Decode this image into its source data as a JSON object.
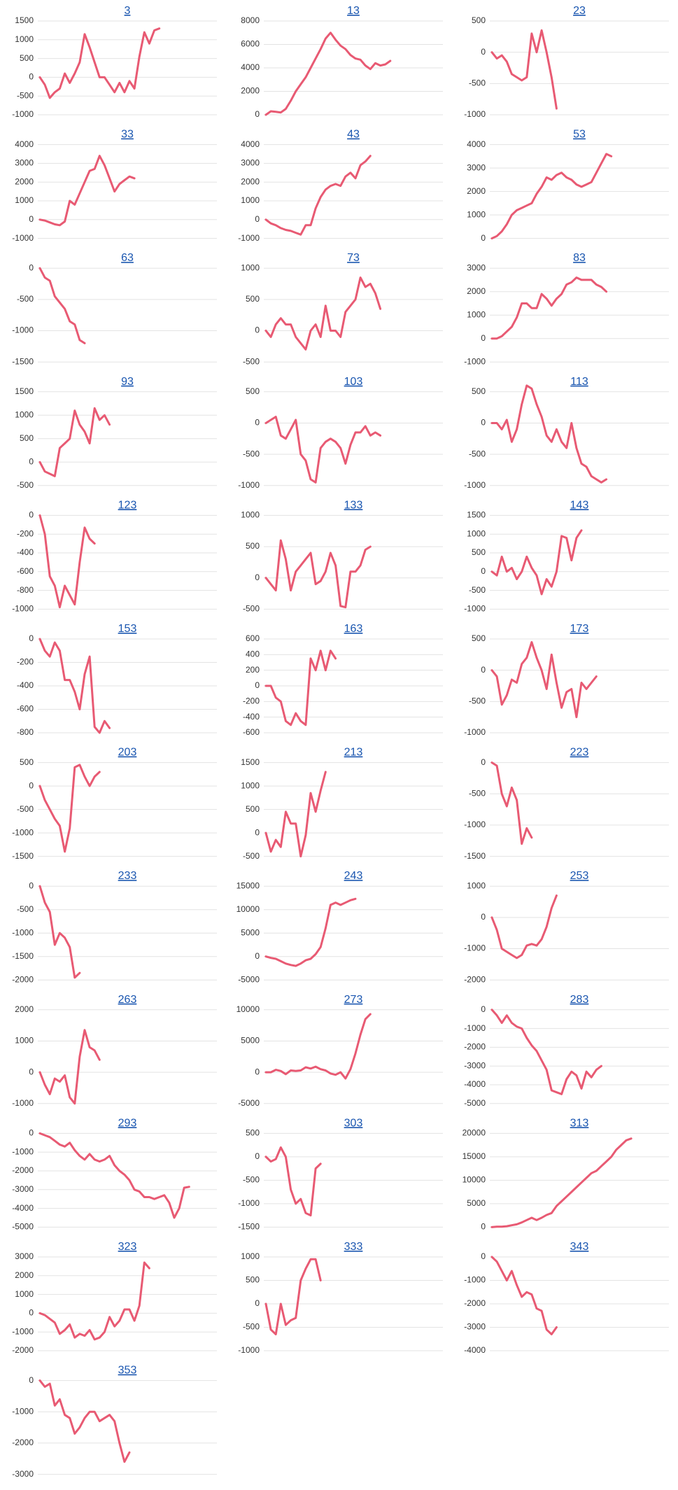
{
  "chart_data": [
    {
      "type": "line",
      "title": "3",
      "color": "#e85a73",
      "grid": true,
      "ylim": [
        -1000,
        1500
      ],
      "yticks": [
        -1000,
        -500,
        0,
        500,
        1000,
        1500
      ],
      "values": [
        0,
        -200,
        -550,
        -400,
        -300,
        100,
        -150,
        100,
        400,
        1150,
        800,
        400,
        0,
        0,
        -200,
        -400,
        -150,
        -400,
        -100,
        -300,
        550,
        1200,
        900,
        1250,
        1300
      ]
    },
    {
      "type": "line",
      "title": "13",
      "color": "#e85a73",
      "grid": true,
      "ylim": [
        0,
        8000
      ],
      "yticks": [
        0,
        2000,
        4000,
        6000,
        8000
      ],
      "values": [
        0,
        300,
        250,
        200,
        500,
        1200,
        2000,
        2600,
        3200,
        4000,
        4800,
        5600,
        6500,
        7000,
        6400,
        5900,
        5600,
        5100,
        4800,
        4700,
        4200,
        3900,
        4400,
        4200,
        4300,
        4600
      ]
    },
    {
      "type": "line",
      "title": "23",
      "color": "#e85a73",
      "grid": true,
      "ylim": [
        -1000,
        500
      ],
      "yticks": [
        -1000,
        -500,
        0,
        500
      ],
      "values": [
        0,
        -100,
        -50,
        -150,
        -350,
        -400,
        -450,
        -400,
        300,
        0,
        350,
        0,
        -400,
        -900
      ]
    },
    {
      "type": "line",
      "title": "33",
      "color": "#e85a73",
      "grid": true,
      "ylim": [
        -1000,
        4000
      ],
      "yticks": [
        -1000,
        0,
        1000,
        2000,
        3000,
        4000
      ],
      "values": [
        0,
        -50,
        -150,
        -250,
        -300,
        -100,
        1000,
        800,
        1400,
        2000,
        2600,
        2700,
        3400,
        2900,
        2200,
        1500,
        1900,
        2100,
        2300,
        2200
      ]
    },
    {
      "type": "line",
      "title": "43",
      "color": "#e85a73",
      "grid": true,
      "ylim": [
        -1000,
        4000
      ],
      "yticks": [
        -1000,
        0,
        1000,
        2000,
        3000,
        4000
      ],
      "values": [
        0,
        -200,
        -300,
        -450,
        -550,
        -600,
        -700,
        -800,
        -300,
        -300,
        600,
        1200,
        1600,
        1800,
        1900,
        1800,
        2300,
        2500,
        2200,
        2900,
        3100,
        3400
      ]
    },
    {
      "type": "line",
      "title": "53",
      "color": "#e85a73",
      "grid": true,
      "ylim": [
        0,
        4000
      ],
      "yticks": [
        0,
        1000,
        2000,
        3000,
        4000
      ],
      "values": [
        0,
        100,
        300,
        600,
        1000,
        1200,
        1300,
        1400,
        1500,
        1900,
        2200,
        2600,
        2500,
        2700,
        2800,
        2600,
        2500,
        2300,
        2200,
        2300,
        2400,
        2800,
        3200,
        3600,
        3500
      ]
    },
    {
      "type": "line",
      "title": "63",
      "color": "#e85a73",
      "grid": true,
      "ylim": [
        -1500,
        0
      ],
      "yticks": [
        -1500,
        -1000,
        -500,
        0
      ],
      "values": [
        0,
        -150,
        -200,
        -450,
        -550,
        -650,
        -850,
        -900,
        -1150,
        -1200
      ]
    },
    {
      "type": "line",
      "title": "73",
      "color": "#e85a73",
      "grid": true,
      "ylim": [
        -500,
        1000
      ],
      "yticks": [
        -500,
        0,
        500,
        1000
      ],
      "values": [
        0,
        -100,
        100,
        200,
        100,
        100,
        -100,
        -200,
        -300,
        0,
        100,
        -100,
        400,
        0,
        0,
        -100,
        300,
        400,
        500,
        850,
        700,
        750,
        600,
        350
      ]
    },
    {
      "type": "line",
      "title": "83",
      "color": "#e85a73",
      "grid": true,
      "ylim": [
        -1000,
        3000
      ],
      "yticks": [
        -1000,
        0,
        1000,
        2000,
        3000
      ],
      "values": [
        0,
        0,
        100,
        300,
        500,
        900,
        1500,
        1500,
        1300,
        1300,
        1900,
        1700,
        1400,
        1700,
        1900,
        2300,
        2400,
        2600,
        2500,
        2500,
        2500,
        2300,
        2200,
        2000
      ]
    },
    {
      "type": "line",
      "title": "93",
      "color": "#e85a73",
      "grid": true,
      "ylim": [
        -500,
        1500
      ],
      "yticks": [
        -500,
        0,
        500,
        1000,
        1500
      ],
      "values": [
        0,
        -200,
        -250,
        -300,
        300,
        400,
        500,
        1100,
        800,
        650,
        400,
        1150,
        900,
        1000,
        800
      ]
    },
    {
      "type": "line",
      "title": "103",
      "color": "#e85a73",
      "grid": true,
      "ylim": [
        -1000,
        500
      ],
      "yticks": [
        -1000,
        -500,
        0,
        500
      ],
      "values": [
        0,
        50,
        100,
        -200,
        -250,
        -100,
        50,
        -500,
        -600,
        -900,
        -950,
        -400,
        -300,
        -250,
        -300,
        -400,
        -650,
        -350,
        -150,
        -150,
        -50,
        -200,
        -150,
        -200
      ]
    },
    {
      "type": "line",
      "title": "113",
      "color": "#e85a73",
      "grid": true,
      "ylim": [
        -1000,
        500
      ],
      "yticks": [
        -1000,
        -500,
        0,
        500
      ],
      "values": [
        0,
        0,
        -100,
        50,
        -300,
        -100,
        300,
        600,
        550,
        300,
        100,
        -200,
        -300,
        -100,
        -300,
        -400,
        0,
        -400,
        -650,
        -700,
        -850,
        -900,
        -950,
        -900
      ]
    },
    {
      "type": "line",
      "title": "123",
      "color": "#e85a73",
      "grid": true,
      "ylim": [
        -1000,
        0
      ],
      "yticks": [
        -1000,
        -800,
        -600,
        -400,
        -200,
        0
      ],
      "values": [
        0,
        -200,
        -650,
        -750,
        -980,
        -750,
        -850,
        -950,
        -500,
        -130,
        -250,
        -300
      ]
    },
    {
      "type": "line",
      "title": "133",
      "color": "#e85a73",
      "grid": true,
      "ylim": [
        -500,
        1000
      ],
      "yticks": [
        -500,
        0,
        500,
        1000
      ],
      "values": [
        0,
        -100,
        -200,
        600,
        300,
        -200,
        100,
        200,
        300,
        400,
        -100,
        -50,
        100,
        400,
        200,
        -450,
        -470,
        100,
        100,
        200,
        450,
        500
      ]
    },
    {
      "type": "line",
      "title": "143",
      "color": "#e85a73",
      "grid": true,
      "ylim": [
        -1000,
        1500
      ],
      "yticks": [
        -1000,
        -500,
        0,
        500,
        1000,
        1500
      ],
      "values": [
        0,
        -100,
        400,
        0,
        100,
        -200,
        0,
        400,
        100,
        -100,
        -600,
        -200,
        -400,
        0,
        950,
        900,
        300,
        900,
        1100
      ]
    },
    {
      "type": "line",
      "title": "153",
      "color": "#e85a73",
      "grid": true,
      "ylim": [
        -800,
        0
      ],
      "yticks": [
        -800,
        -600,
        -400,
        -200,
        0
      ],
      "values": [
        0,
        -100,
        -150,
        -30,
        -100,
        -350,
        -350,
        -450,
        -600,
        -300,
        -150,
        -750,
        -800,
        -700,
        -760
      ]
    },
    {
      "type": "line",
      "title": "163",
      "color": "#e85a73",
      "grid": true,
      "ylim": [
        -600,
        600
      ],
      "yticks": [
        -600,
        -400,
        -200,
        0,
        200,
        400,
        600
      ],
      "values": [
        0,
        0,
        -150,
        -200,
        -450,
        -500,
        -350,
        -450,
        -500,
        350,
        200,
        450,
        200,
        450,
        350
      ]
    },
    {
      "type": "line",
      "title": "173",
      "color": "#e85a73",
      "grid": true,
      "ylim": [
        -1000,
        500
      ],
      "yticks": [
        -1000,
        -500,
        0,
        500
      ],
      "values": [
        0,
        -100,
        -550,
        -400,
        -150,
        -200,
        100,
        200,
        450,
        200,
        0,
        -300,
        250,
        -200,
        -600,
        -350,
        -300,
        -750,
        -200,
        -300,
        -200,
        -100
      ]
    },
    {
      "type": "line",
      "title": "203",
      "color": "#e85a73",
      "grid": true,
      "ylim": [
        -1500,
        500
      ],
      "yticks": [
        -1500,
        -1000,
        -500,
        0,
        500
      ],
      "values": [
        0,
        -300,
        -500,
        -700,
        -850,
        -1400,
        -900,
        400,
        450,
        200,
        0,
        200,
        300
      ]
    },
    {
      "type": "line",
      "title": "213",
      "color": "#e85a73",
      "grid": true,
      "ylim": [
        -500,
        1500
      ],
      "yticks": [
        -500,
        0,
        500,
        1000,
        1500
      ],
      "values": [
        0,
        -400,
        -150,
        -300,
        450,
        200,
        200,
        -500,
        -50,
        850,
        450,
        900,
        1300
      ]
    },
    {
      "type": "line",
      "title": "223",
      "color": "#e85a73",
      "grid": true,
      "ylim": [
        -1500,
        0
      ],
      "yticks": [
        -1500,
        -1000,
        -500,
        0
      ],
      "values": [
        0,
        -50,
        -500,
        -700,
        -400,
        -600,
        -1300,
        -1050,
        -1200
      ]
    },
    {
      "type": "line",
      "title": "233",
      "color": "#e85a73",
      "grid": true,
      "ylim": [
        -2000,
        0
      ],
      "yticks": [
        -2000,
        -1500,
        -1000,
        -500,
        0
      ],
      "values": [
        0,
        -350,
        -550,
        -1250,
        -1000,
        -1100,
        -1300,
        -1950,
        -1850
      ]
    },
    {
      "type": "line",
      "title": "243",
      "color": "#e85a73",
      "grid": true,
      "ylim": [
        -5000,
        15000
      ],
      "yticks": [
        -5000,
        0,
        5000,
        10000,
        15000
      ],
      "values": [
        0,
        -300,
        -500,
        -1000,
        -1500,
        -1800,
        -2000,
        -1500,
        -800,
        -500,
        500,
        2000,
        6000,
        11000,
        11500,
        11000,
        11500,
        12000,
        12300
      ]
    },
    {
      "type": "line",
      "title": "253",
      "color": "#e85a73",
      "grid": true,
      "ylim": [
        -2000,
        1000
      ],
      "yticks": [
        -2000,
        -1000,
        0,
        1000
      ],
      "values": [
        0,
        -400,
        -1000,
        -1100,
        -1200,
        -1300,
        -1200,
        -900,
        -850,
        -900,
        -700,
        -300,
        300,
        700
      ]
    },
    {
      "type": "line",
      "title": "263",
      "color": "#e85a73",
      "grid": true,
      "ylim": [
        -1000,
        2000
      ],
      "yticks": [
        -1000,
        0,
        1000,
        2000
      ],
      "values": [
        0,
        -400,
        -700,
        -200,
        -300,
        -100,
        -800,
        -1000,
        500,
        1350,
        800,
        700,
        400
      ]
    },
    {
      "type": "line",
      "title": "273",
      "color": "#e85a73",
      "grid": true,
      "ylim": [
        -5000,
        10000
      ],
      "yticks": [
        -5000,
        0,
        5000,
        10000
      ],
      "values": [
        0,
        0,
        400,
        200,
        -300,
        300,
        200,
        300,
        800,
        600,
        900,
        500,
        300,
        -200,
        -400,
        0,
        -1000,
        500,
        3000,
        6000,
        8500,
        9300
      ]
    },
    {
      "type": "line",
      "title": "283",
      "color": "#e85a73",
      "grid": true,
      "ylim": [
        -5000,
        0
      ],
      "yticks": [
        -5000,
        -4000,
        -3000,
        -2000,
        -1000,
        0
      ],
      "values": [
        0,
        -300,
        -700,
        -300,
        -700,
        -900,
        -1000,
        -1500,
        -1900,
        -2200,
        -2700,
        -3200,
        -4300,
        -4400,
        -4500,
        -3700,
        -3300,
        -3500,
        -4200,
        -3300,
        -3600,
        -3200,
        -3000
      ]
    },
    {
      "type": "line",
      "title": "293",
      "color": "#e85a73",
      "grid": true,
      "ylim": [
        -5000,
        0
      ],
      "yticks": [
        -5000,
        -4000,
        -3000,
        -2000,
        -1000,
        0
      ],
      "values": [
        0,
        -100,
        -200,
        -400,
        -600,
        -700,
        -500,
        -900,
        -1200,
        -1400,
        -1100,
        -1400,
        -1500,
        -1400,
        -1200,
        -1700,
        -2000,
        -2200,
        -2500,
        -3000,
        -3100,
        -3400,
        -3400,
        -3500,
        -3400,
        -3300,
        -3700,
        -4500,
        -4000,
        -2900,
        -2850
      ]
    },
    {
      "type": "line",
      "title": "303",
      "color": "#e85a73",
      "grid": true,
      "ylim": [
        -1500,
        500
      ],
      "yticks": [
        -1500,
        -1000,
        -500,
        0,
        500
      ],
      "values": [
        0,
        -100,
        -50,
        200,
        0,
        -700,
        -1000,
        -900,
        -1200,
        -1250,
        -250,
        -150
      ]
    },
    {
      "type": "line",
      "title": "313",
      "color": "#e85a73",
      "grid": true,
      "ylim": [
        0,
        20000
      ],
      "yticks": [
        0,
        5000,
        10000,
        15000,
        20000
      ],
      "values": [
        0,
        100,
        100,
        200,
        400,
        600,
        1000,
        1500,
        2000,
        1500,
        2000,
        2600,
        3000,
        4500,
        5500,
        6500,
        7500,
        8500,
        9500,
        10500,
        11500,
        12000,
        13000,
        14000,
        15000,
        16500,
        17500,
        18500,
        18900
      ]
    },
    {
      "type": "line",
      "title": "323",
      "color": "#e85a73",
      "grid": true,
      "ylim": [
        -2000,
        3000
      ],
      "yticks": [
        -2000,
        -1000,
        0,
        1000,
        2000,
        3000
      ],
      "values": [
        0,
        -100,
        -300,
        -500,
        -1100,
        -900,
        -600,
        -1300,
        -1100,
        -1200,
        -900,
        -1400,
        -1300,
        -1000,
        -200,
        -700,
        -400,
        200,
        200,
        -400,
        400,
        2700,
        2400
      ]
    },
    {
      "type": "line",
      "title": "333",
      "color": "#e85a73",
      "grid": true,
      "ylim": [
        -1000,
        1000
      ],
      "yticks": [
        -1000,
        -500,
        0,
        500,
        1000
      ],
      "values": [
        0,
        -550,
        -650,
        0,
        -450,
        -350,
        -300,
        500,
        750,
        950,
        950,
        500
      ]
    },
    {
      "type": "line",
      "title": "343",
      "color": "#e85a73",
      "grid": true,
      "ylim": [
        -4000,
        0
      ],
      "yticks": [
        -4000,
        -3000,
        -2000,
        -1000,
        0
      ],
      "values": [
        0,
        -200,
        -600,
        -1000,
        -600,
        -1200,
        -1700,
        -1500,
        -1600,
        -2200,
        -2300,
        -3100,
        -3300,
        -3000
      ]
    },
    {
      "type": "line",
      "title": "353",
      "color": "#e85a73",
      "grid": true,
      "ylim": [
        -3000,
        0
      ],
      "yticks": [
        -3000,
        -2000,
        -1000,
        0
      ],
      "values": [
        0,
        -200,
        -100,
        -800,
        -600,
        -1100,
        -1200,
        -1700,
        -1500,
        -1200,
        -1000,
        -1000,
        -1300,
        -1200,
        -1100,
        -1300,
        -2000,
        -2600,
        -2300
      ]
    }
  ]
}
